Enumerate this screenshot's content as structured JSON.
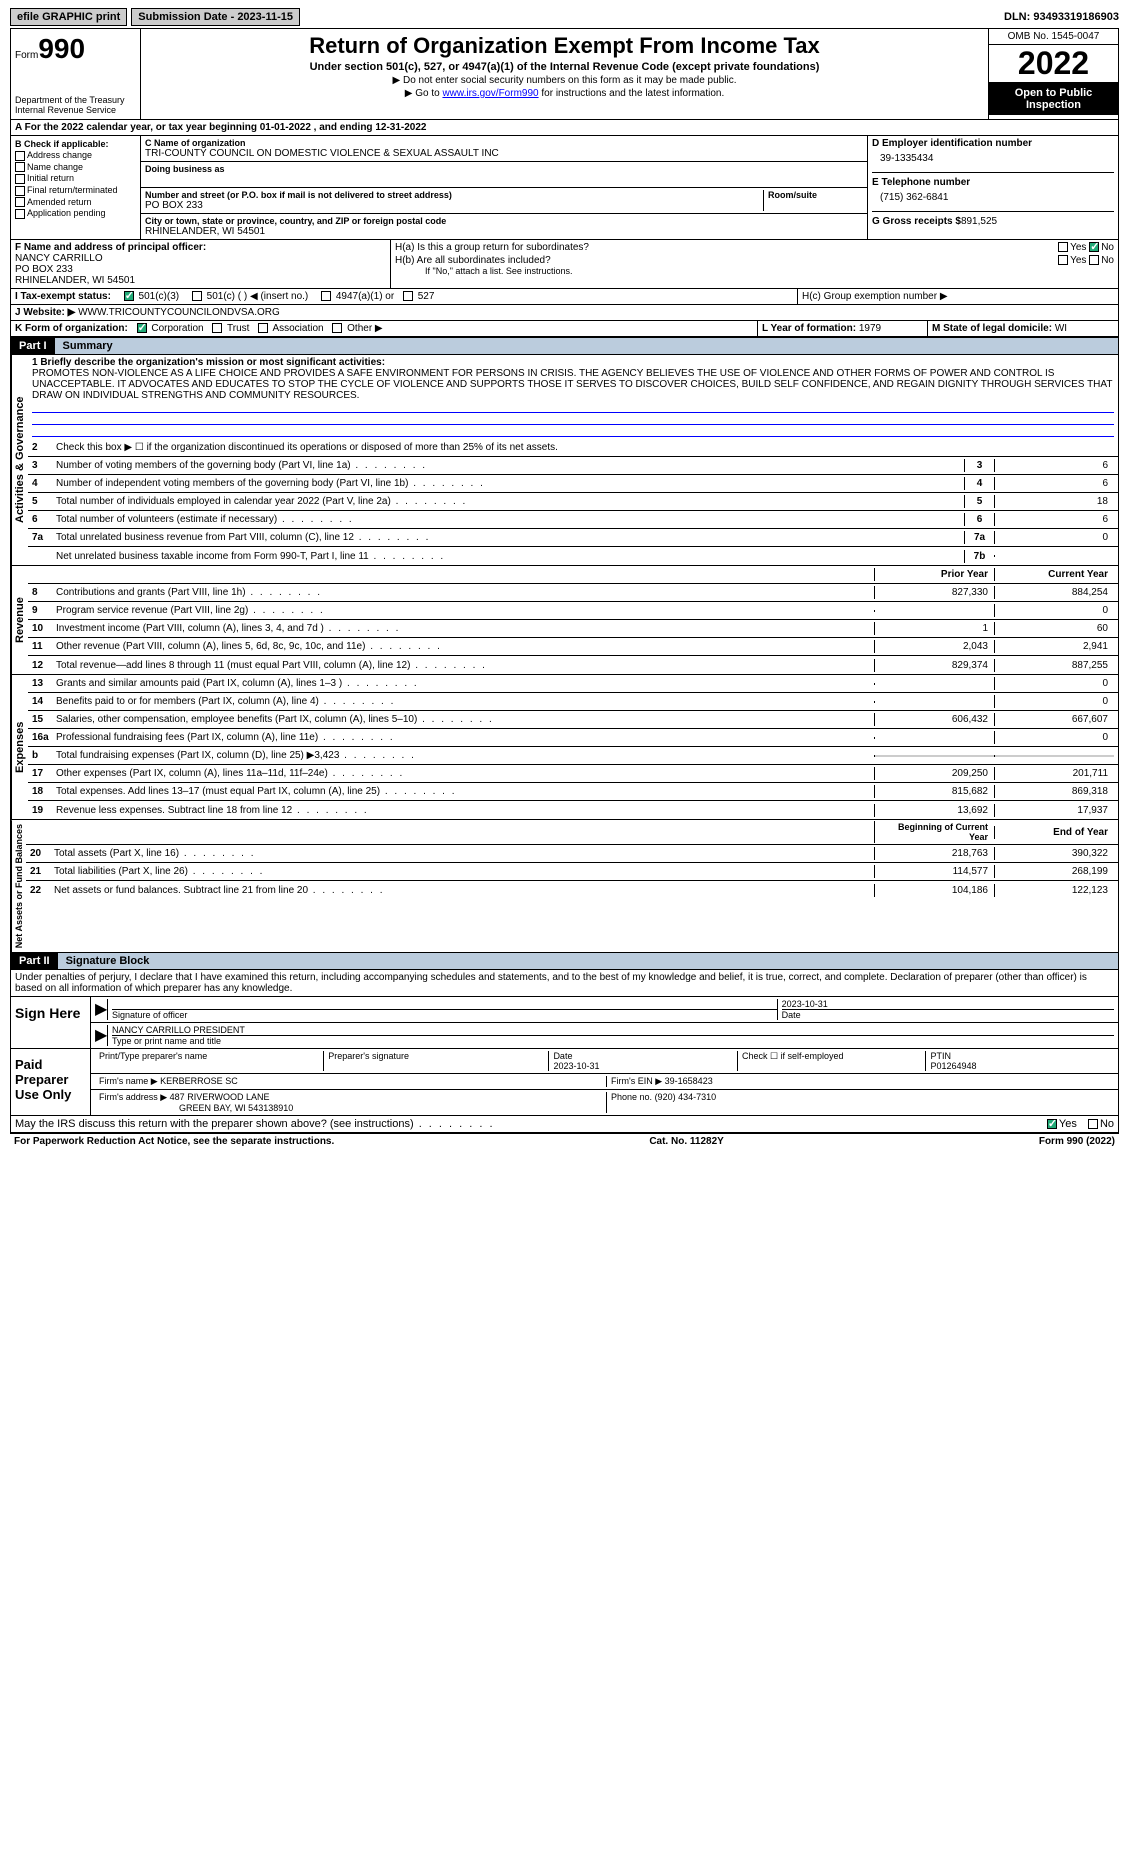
{
  "topbar": {
    "efile": "efile GRAPHIC print",
    "submission": "Submission Date - 2023-11-15",
    "dln": "DLN: 93493319186903"
  },
  "header": {
    "form_label": "Form",
    "form_num": "990",
    "dept": "Department of the Treasury Internal Revenue Service",
    "title": "Return of Organization Exempt From Income Tax",
    "sub": "Under section 501(c), 527, or 4947(a)(1) of the Internal Revenue Code (except private foundations)",
    "note1": "▶ Do not enter social security numbers on this form as it may be made public.",
    "note2": "▶ Go to ",
    "link": "www.irs.gov/Form990",
    "note3": " for instructions and the latest information.",
    "omb": "OMB No. 1545-0047",
    "year": "2022",
    "open": "Open to Public Inspection"
  },
  "section_a": "A For the 2022 calendar year, or tax year beginning 01-01-2022    , and ending 12-31-2022",
  "b": {
    "label": "B Check if applicable:",
    "items": [
      "Address change",
      "Name change",
      "Initial return",
      "Final return/terminated",
      "Amended return",
      "Application pending"
    ]
  },
  "c": {
    "name_label": "C Name of organization",
    "name": "TRI-COUNTY COUNCIL ON DOMESTIC VIOLENCE & SEXUAL ASSAULT INC",
    "dba_label": "Doing business as",
    "addr_label": "Number and street (or P.O. box if mail is not delivered to street address)",
    "addr": "PO BOX 233",
    "room_label": "Room/suite",
    "city_label": "City or town, state or province, country, and ZIP or foreign postal code",
    "city": "RHINELANDER, WI  54501"
  },
  "d": {
    "label": "D Employer identification number",
    "val": "39-1335434"
  },
  "e": {
    "label": "E Telephone number",
    "val": "(715) 362-6841"
  },
  "g": {
    "label": "G Gross receipts $",
    "val": "891,525"
  },
  "f": {
    "label": "F Name and address of principal officer:",
    "name": "NANCY CARRILLO",
    "addr": "PO BOX 233",
    "city": "RHINELANDER, WI  54501"
  },
  "h": {
    "a": "H(a) Is this a group return for subordinates?",
    "b": "H(b) Are all subordinates included?",
    "b_note": "If \"No,\" attach a list. See instructions.",
    "c": "H(c) Group exemption number ▶",
    "yes": "Yes",
    "no": "No"
  },
  "i": {
    "label": "I   Tax-exempt status:",
    "opts": [
      "501(c)(3)",
      "501(c) (  ) ◀ (insert no.)",
      "4947(a)(1) or",
      "527"
    ]
  },
  "j": {
    "label": "J   Website: ▶",
    "val": "WWW.TRICOUNTYCOUNCILONDVSA.ORG"
  },
  "k": {
    "label": "K Form of organization:",
    "opts": [
      "Corporation",
      "Trust",
      "Association",
      "Other ▶"
    ]
  },
  "l": {
    "label": "L Year of formation:",
    "val": "1979"
  },
  "m": {
    "label": "M State of legal domicile:",
    "val": "WI"
  },
  "part1": {
    "hdr": "Part I",
    "title": "Summary"
  },
  "gov": {
    "vert": "Activities & Governance",
    "l1_label": "1 Briefly describe the organization's mission or most significant activities:",
    "l1_text": "PROMOTES NON-VIOLENCE AS A LIFE CHOICE AND PROVIDES A SAFE ENVIRONMENT FOR PERSONS IN CRISIS. THE AGENCY BELIEVES THE USE OF VIOLENCE AND OTHER FORMS OF POWER AND CONTROL IS UNACCEPTABLE. IT ADVOCATES AND EDUCATES TO STOP THE CYCLE OF VIOLENCE AND SUPPORTS THOSE IT SERVES TO DISCOVER CHOICES, BUILD SELF CONFIDENCE, AND REGAIN DIGNITY THROUGH SERVICES THAT DRAW ON INDIVIDUAL STRENGTHS AND COMMUNITY RESOURCES.",
    "l2": "Check this box ▶ ☐ if the organization discontinued its operations or disposed of more than 25% of its net assets.",
    "lines": [
      {
        "n": "3",
        "d": "Number of voting members of the governing body (Part VI, line 1a)",
        "b": "3",
        "v": "6"
      },
      {
        "n": "4",
        "d": "Number of independent voting members of the governing body (Part VI, line 1b)",
        "b": "4",
        "v": "6"
      },
      {
        "n": "5",
        "d": "Total number of individuals employed in calendar year 2022 (Part V, line 2a)",
        "b": "5",
        "v": "18"
      },
      {
        "n": "6",
        "d": "Total number of volunteers (estimate if necessary)",
        "b": "6",
        "v": "6"
      },
      {
        "n": "7a",
        "d": "Total unrelated business revenue from Part VIII, column (C), line 12",
        "b": "7a",
        "v": "0"
      },
      {
        "n": "",
        "d": "Net unrelated business taxable income from Form 990-T, Part I, line 11",
        "b": "7b",
        "v": ""
      }
    ]
  },
  "rev": {
    "vert": "Revenue",
    "hdr_prior": "Prior Year",
    "hdr_curr": "Current Year",
    "lines": [
      {
        "n": "8",
        "d": "Contributions and grants (Part VIII, line 1h)",
        "p": "827,330",
        "c": "884,254"
      },
      {
        "n": "9",
        "d": "Program service revenue (Part VIII, line 2g)",
        "p": "",
        "c": "0"
      },
      {
        "n": "10",
        "d": "Investment income (Part VIII, column (A), lines 3, 4, and 7d )",
        "p": "1",
        "c": "60"
      },
      {
        "n": "11",
        "d": "Other revenue (Part VIII, column (A), lines 5, 6d, 8c, 9c, 10c, and 11e)",
        "p": "2,043",
        "c": "2,941"
      },
      {
        "n": "12",
        "d": "Total revenue—add lines 8 through 11 (must equal Part VIII, column (A), line 12)",
        "p": "829,374",
        "c": "887,255"
      }
    ]
  },
  "exp": {
    "vert": "Expenses",
    "lines": [
      {
        "n": "13",
        "d": "Grants and similar amounts paid (Part IX, column (A), lines 1–3 )",
        "p": "",
        "c": "0"
      },
      {
        "n": "14",
        "d": "Benefits paid to or for members (Part IX, column (A), line 4)",
        "p": "",
        "c": "0"
      },
      {
        "n": "15",
        "d": "Salaries, other compensation, employee benefits (Part IX, column (A), lines 5–10)",
        "p": "606,432",
        "c": "667,607"
      },
      {
        "n": "16a",
        "d": "Professional fundraising fees (Part IX, column (A), line 11e)",
        "p": "",
        "c": "0"
      },
      {
        "n": "b",
        "d": "Total fundraising expenses (Part IX, column (D), line 25) ▶3,423",
        "p": "shaded",
        "c": "shaded"
      },
      {
        "n": "17",
        "d": "Other expenses (Part IX, column (A), lines 11a–11d, 11f–24e)",
        "p": "209,250",
        "c": "201,711"
      },
      {
        "n": "18",
        "d": "Total expenses. Add lines 13–17 (must equal Part IX, column (A), line 25)",
        "p": "815,682",
        "c": "869,318"
      },
      {
        "n": "19",
        "d": "Revenue less expenses. Subtract line 18 from line 12",
        "p": "13,692",
        "c": "17,937"
      }
    ]
  },
  "net": {
    "vert": "Net Assets or Fund Balances",
    "hdr_beg": "Beginning of Current Year",
    "hdr_end": "End of Year",
    "lines": [
      {
        "n": "20",
        "d": "Total assets (Part X, line 16)",
        "p": "218,763",
        "c": "390,322"
      },
      {
        "n": "21",
        "d": "Total liabilities (Part X, line 26)",
        "p": "114,577",
        "c": "268,199"
      },
      {
        "n": "22",
        "d": "Net assets or fund balances. Subtract line 21 from line 20",
        "p": "104,186",
        "c": "122,123"
      }
    ]
  },
  "part2": {
    "hdr": "Part II",
    "title": "Signature Block"
  },
  "decl": "Under penalties of perjury, I declare that I have examined this return, including accompanying schedules and statements, and to the best of my knowledge and belief, it is true, correct, and complete. Declaration of preparer (other than officer) is based on all information of which preparer has any knowledge.",
  "sign": {
    "label": "Sign Here",
    "sig_of": "Signature of officer",
    "date": "2023-10-31",
    "date_label": "Date",
    "name": "NANCY CARRILLO  PRESIDENT",
    "name_label": "Type or print name and title"
  },
  "prep": {
    "label": "Paid Preparer Use Only",
    "name_label": "Print/Type preparer's name",
    "sig_label": "Preparer's signature",
    "date_label": "Date",
    "date": "2023-10-31",
    "check_label": "Check ☐ if self-employed",
    "ptin_label": "PTIN",
    "ptin": "P01264948",
    "firm_label": "Firm's name   ▶",
    "firm": "KERBERROSE SC",
    "ein_label": "Firm's EIN ▶",
    "ein": "39-1658423",
    "addr_label": "Firm's address ▶",
    "addr": "487 RIVERWOOD LANE",
    "city": "GREEN BAY, WI  543138910",
    "phone_label": "Phone no.",
    "phone": "(920) 434-7310"
  },
  "may": {
    "q": "May the IRS discuss this return with the preparer shown above? (see instructions)",
    "yes": "Yes",
    "no": "No"
  },
  "footer": {
    "left": "For Paperwork Reduction Act Notice, see the separate instructions.",
    "mid": "Cat. No. 11282Y",
    "right": "Form 990 (2022)"
  }
}
